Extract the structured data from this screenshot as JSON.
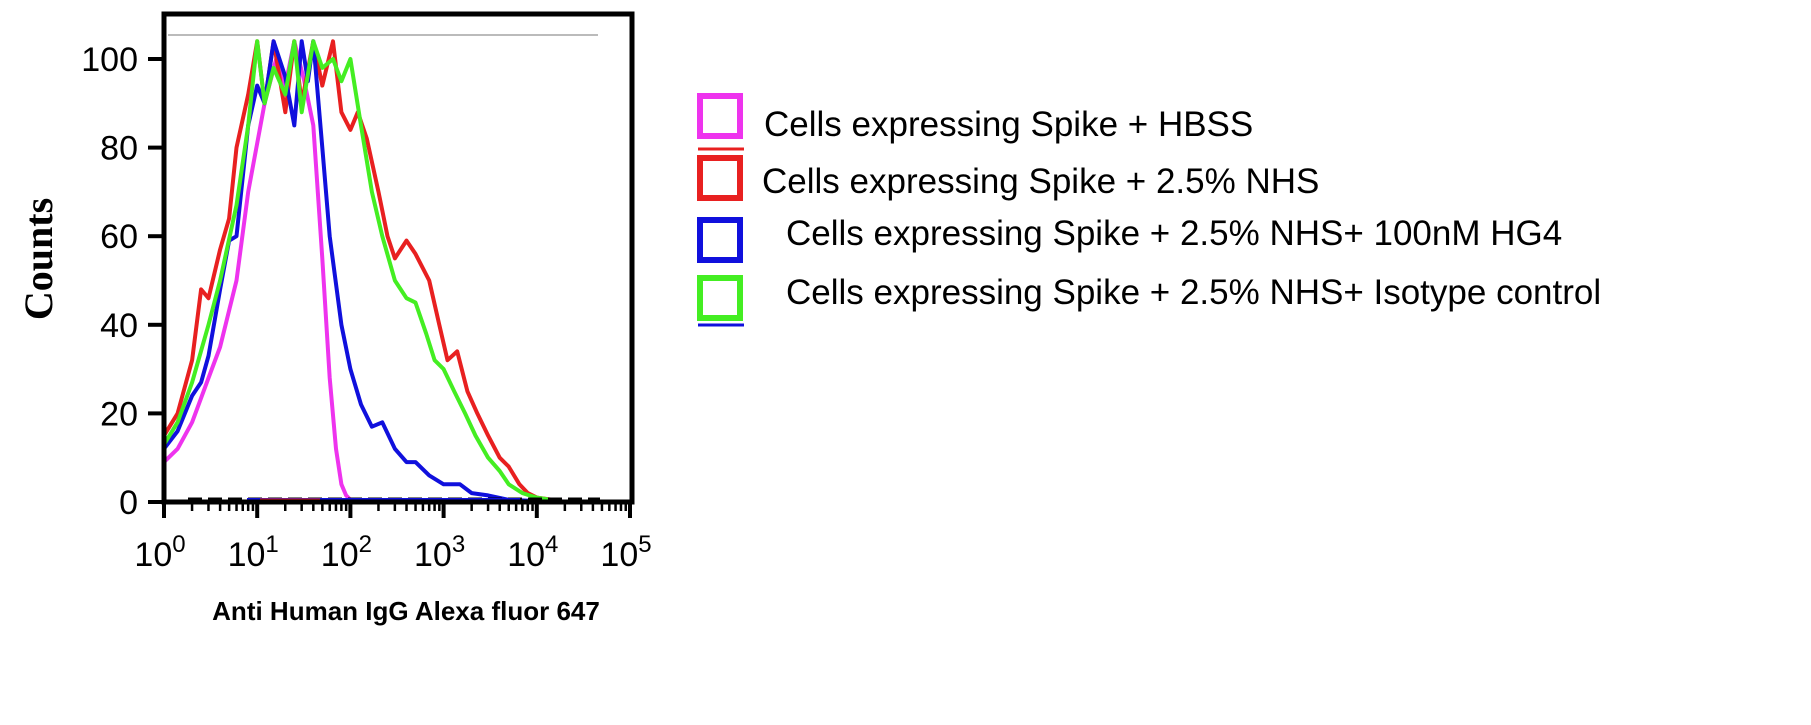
{
  "chart_data": {
    "type": "line",
    "title": "",
    "xlabel": "Anti Human IgG Alexa fluor 647",
    "ylabel": "Counts",
    "x_scale": "log10",
    "xlim": [
      1,
      100000
    ],
    "ylim": [
      0,
      105
    ],
    "x_ticks": [
      {
        "base": "10",
        "exp": "0"
      },
      {
        "base": "10",
        "exp": "1"
      },
      {
        "base": "10",
        "exp": "2"
      },
      {
        "base": "10",
        "exp": "3"
      },
      {
        "base": "10",
        "exp": "4"
      },
      {
        "base": "10",
        "exp": "5"
      }
    ],
    "y_ticks": [
      "0",
      "20",
      "40",
      "60",
      "80",
      "100"
    ],
    "legend_position": "right",
    "series": [
      {
        "name": "Cells expressing Spike + HBSS",
        "color": "#ee33ee",
        "x": [
          1,
          1.4,
          2,
          3,
          4,
          6,
          8,
          12,
          16,
          20,
          25,
          32,
          40,
          50,
          60,
          70,
          80,
          90,
          100,
          120,
          150,
          200,
          300,
          1000,
          10000,
          50000
        ],
        "y": [
          9,
          12,
          18,
          28,
          35,
          50,
          70,
          90,
          100,
          94,
          104,
          95,
          85,
          55,
          28,
          12,
          4,
          1.5,
          0.5,
          0.3,
          0.2,
          0,
          0,
          0,
          0,
          0
        ]
      },
      {
        "name": "Cells expressing Spike + 2.5% NHS",
        "color": "#e82020",
        "x": [
          1,
          1.4,
          2,
          2.5,
          3,
          4,
          5,
          6,
          8,
          10,
          12,
          15,
          20,
          25,
          30,
          40,
          50,
          65,
          80,
          100,
          120,
          150,
          200,
          250,
          300,
          400,
          500,
          700,
          900,
          1100,
          1400,
          1800,
          2300,
          3000,
          4000,
          5000,
          6500,
          8000,
          10000,
          15000,
          20000,
          50000
        ],
        "y": [
          15,
          20,
          32,
          48,
          46,
          57,
          64,
          80,
          92,
          104,
          90,
          104,
          88,
          104,
          90,
          104,
          94,
          104,
          88,
          84,
          88,
          82,
          70,
          60,
          55,
          59,
          56,
          50,
          40,
          32,
          34,
          25,
          20,
          15,
          10,
          8,
          4,
          2,
          1,
          0.5,
          0,
          0
        ]
      },
      {
        "name": "Cells expressing Spike + 2.5% NHS+ 100nM HG4",
        "color": "#1010dd",
        "x": [
          1,
          1.4,
          2,
          2.5,
          3,
          4,
          5,
          6,
          8,
          10,
          12,
          15,
          20,
          25,
          30,
          35,
          40,
          50,
          60,
          80,
          100,
          130,
          170,
          220,
          300,
          400,
          500,
          700,
          1000,
          1500,
          2000,
          3000,
          5000,
          10000,
          50000
        ],
        "y": [
          12,
          16,
          24,
          27,
          33,
          48,
          59,
          60,
          85,
          94,
          90,
          104,
          96,
          85,
          104,
          95,
          104,
          80,
          60,
          40,
          30,
          22,
          17,
          18,
          12,
          9,
          9,
          6,
          4,
          4,
          2,
          1.5,
          0.5,
          0.2,
          0
        ]
      },
      {
        "name": "Cells expressing Spike + 2.5% NHS+ Isotype control",
        "color": "#44ee22",
        "x": [
          1,
          1.4,
          2,
          3,
          4,
          6,
          8,
          10,
          12,
          15,
          20,
          25,
          30,
          40,
          50,
          65,
          80,
          100,
          130,
          170,
          220,
          300,
          400,
          500,
          650,
          800,
          1000,
          1300,
          1700,
          2200,
          3000,
          4000,
          5000,
          7000,
          10000,
          20000,
          50000
        ],
        "y": [
          13,
          18,
          27,
          40,
          50,
          67,
          85,
          104,
          90,
          98,
          92,
          104,
          88,
          104,
          98,
          100,
          95,
          100,
          85,
          70,
          60,
          50,
          46,
          45,
          38,
          32,
          30,
          25,
          20,
          15,
          10,
          7,
          4,
          2,
          1,
          0,
          0
        ]
      }
    ]
  }
}
